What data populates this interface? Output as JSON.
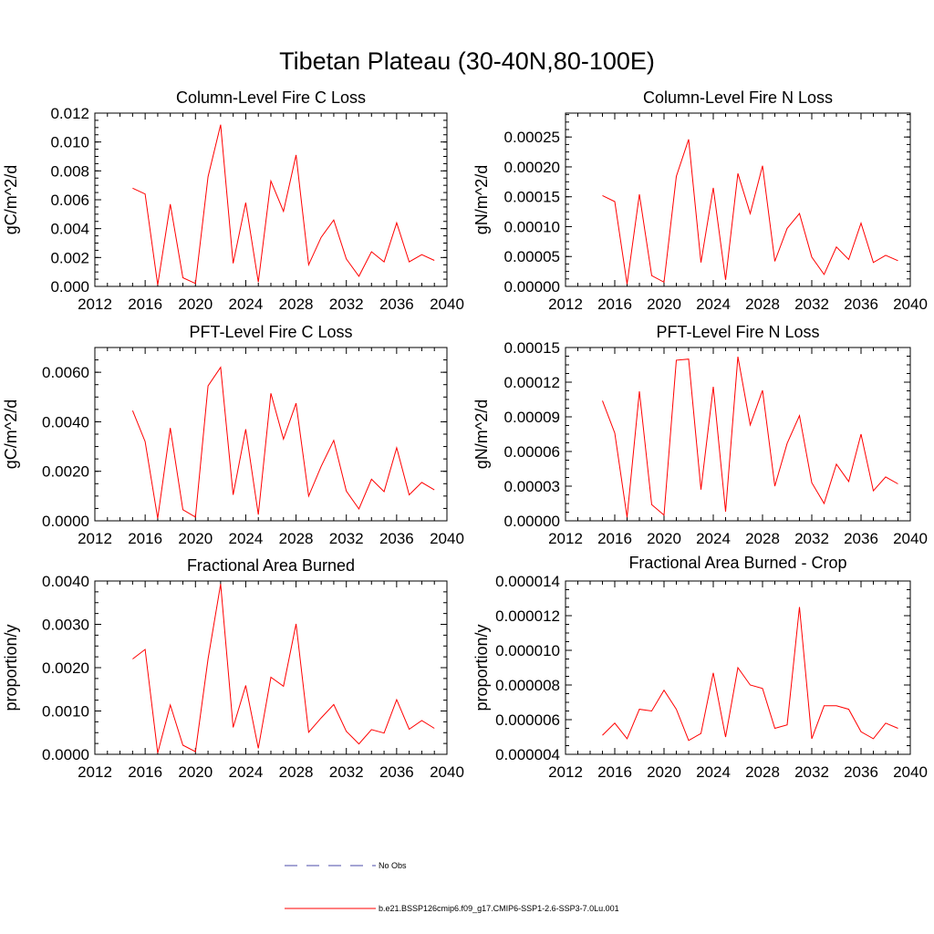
{
  "figure": {
    "title": "Tibetan Plateau (30-40N,80-100E)",
    "legend": [
      {
        "label": "No Obs",
        "color": "#4a4aa8",
        "style": "dashed"
      },
      {
        "label": "b.e21.BSSP126cmip6.f09_g17.CMIP6-SSP1-2.6-SSP3-7.0Lu.001",
        "color": "#ff0000",
        "style": "solid"
      }
    ],
    "line_color": "#ff0000"
  },
  "chart_data": [
    {
      "type": "line",
      "title": "Column-Level Fire C Loss",
      "ylabel": "gC/m^2/d",
      "xlabel": "",
      "xlim": [
        2012,
        2040
      ],
      "xticks": [
        "2012",
        "2016",
        "2020",
        "2024",
        "2028",
        "2032",
        "2036",
        "2040"
      ],
      "ylim": [
        0,
        0.012
      ],
      "yticks": [
        "0.000",
        "0.002",
        "0.004",
        "0.006",
        "0.008",
        "0.010",
        "0.012"
      ],
      "x": [
        2015,
        2016,
        2017,
        2018,
        2019,
        2020,
        2021,
        2022,
        2023,
        2024,
        2025,
        2026,
        2027,
        2028,
        2029,
        2030,
        2031,
        2032,
        2033,
        2034,
        2035,
        2036,
        2037,
        2038,
        2039
      ],
      "series": [
        {
          "values": [
            0.0068,
            0.0064,
            0.0001,
            0.0057,
            0.0006,
            0.0002,
            0.0076,
            0.0112,
            0.0016,
            0.0058,
            0.0003,
            0.0073,
            0.0052,
            0.0091,
            0.0015,
            0.0034,
            0.0046,
            0.0019,
            0.0007,
            0.0024,
            0.0017,
            0.0044,
            0.0017,
            0.0022,
            0.0018
          ]
        }
      ]
    },
    {
      "type": "line",
      "title": "Column-Level Fire N Loss",
      "ylabel": "gN/m^2/d",
      "xlabel": "",
      "xlim": [
        2012,
        2040
      ],
      "xticks": [
        "2012",
        "2016",
        "2020",
        "2024",
        "2028",
        "2032",
        "2036",
        "2040"
      ],
      "ylim": [
        0,
        0.00029
      ],
      "yticks": [
        "0.00000",
        "0.00005",
        "0.00010",
        "0.00015",
        "0.00020",
        "0.00025"
      ],
      "x": [
        2015,
        2016,
        2017,
        2018,
        2019,
        2020,
        2021,
        2022,
        2023,
        2024,
        2025,
        2026,
        2027,
        2028,
        2029,
        2030,
        2031,
        2032,
        2033,
        2034,
        2035,
        2036,
        2037,
        2038,
        2039
      ],
      "series": [
        {
          "values": [
            0.000152,
            0.000142,
            4e-06,
            0.000154,
            1.8e-05,
            7e-06,
            0.000184,
            0.000246,
            4e-05,
            0.000165,
            1.1e-05,
            0.000189,
            0.000122,
            0.000202,
            4.2e-05,
            9.7e-05,
            0.000122,
            4.9e-05,
            2e-05,
            6.6e-05,
            4.5e-05,
            0.000106,
            4e-05,
            5.2e-05,
            4.3e-05
          ]
        }
      ]
    },
    {
      "type": "line",
      "title": "PFT-Level Fire C Loss",
      "ylabel": "gC/m^2/d",
      "xlabel": "",
      "xlim": [
        2012,
        2040
      ],
      "xticks": [
        "2012",
        "2016",
        "2020",
        "2024",
        "2028",
        "2032",
        "2036",
        "2040"
      ],
      "ylim": [
        0,
        0.007
      ],
      "yticks": [
        "0.0000",
        "0.0020",
        "0.0040",
        "0.0060"
      ],
      "x": [
        2015,
        2016,
        2017,
        2018,
        2019,
        2020,
        2021,
        2022,
        2023,
        2024,
        2025,
        2026,
        2027,
        2028,
        2029,
        2030,
        2031,
        2032,
        2033,
        2034,
        2035,
        2036,
        2037,
        2038,
        2039
      ],
      "series": [
        {
          "values": [
            0.00445,
            0.0032,
            0.0001,
            0.00375,
            0.00045,
            0.00015,
            0.00545,
            0.0062,
            0.00105,
            0.0037,
            0.00025,
            0.00515,
            0.0033,
            0.00475,
            0.001,
            0.0022,
            0.00325,
            0.0012,
            0.00048,
            0.00168,
            0.00118,
            0.00295,
            0.00105,
            0.00155,
            0.00125
          ]
        }
      ]
    },
    {
      "type": "line",
      "title": "PFT-Level Fire N Loss",
      "ylabel": "gN/m^2/d",
      "xlabel": "",
      "xlim": [
        2012,
        2040
      ],
      "xticks": [
        "2012",
        "2016",
        "2020",
        "2024",
        "2028",
        "2032",
        "2036",
        "2040"
      ],
      "ylim": [
        0,
        0.00015
      ],
      "yticks": [
        "0.00000",
        "0.00003",
        "0.00006",
        "0.00009",
        "0.00012",
        "0.00015"
      ],
      "x": [
        2015,
        2016,
        2017,
        2018,
        2019,
        2020,
        2021,
        2022,
        2023,
        2024,
        2025,
        2026,
        2027,
        2028,
        2029,
        2030,
        2031,
        2032,
        2033,
        2034,
        2035,
        2036,
        2037,
        2038,
        2039
      ],
      "series": [
        {
          "values": [
            0.000104,
            7.6e-05,
            3e-06,
            0.000112,
            1.4e-05,
            5e-06,
            0.000139,
            0.00014,
            2.7e-05,
            0.000116,
            8e-06,
            0.000142,
            8.3e-05,
            0.000113,
            3e-05,
            6.7e-05,
            9.1e-05,
            3.3e-05,
            1.5e-05,
            4.9e-05,
            3.4e-05,
            7.5e-05,
            2.6e-05,
            3.8e-05,
            3.2e-05
          ]
        }
      ]
    },
    {
      "type": "line",
      "title": "Fractional Area Burned",
      "ylabel": "proportion/y",
      "xlabel": "",
      "xlim": [
        2012,
        2040
      ],
      "xticks": [
        "2012",
        "2016",
        "2020",
        "2024",
        "2028",
        "2032",
        "2036",
        "2040"
      ],
      "ylim": [
        0,
        0.004
      ],
      "yticks": [
        "0.0000",
        "0.0010",
        "0.0020",
        "0.0030",
        "0.0040"
      ],
      "x": [
        2015,
        2016,
        2017,
        2018,
        2019,
        2020,
        2021,
        2022,
        2023,
        2024,
        2025,
        2026,
        2027,
        2028,
        2029,
        2030,
        2031,
        2032,
        2033,
        2034,
        2035,
        2036,
        2037,
        2038,
        2039
      ],
      "series": [
        {
          "values": [
            0.0022,
            0.00242,
            3e-05,
            0.00114,
            0.00021,
            6e-05,
            0.0022,
            0.00393,
            0.00062,
            0.00159,
            0.00014,
            0.00178,
            0.00157,
            0.00301,
            0.00051,
            0.00084,
            0.00115,
            0.00053,
            0.00024,
            0.00057,
            0.00049,
            0.00126,
            0.00058,
            0.00078,
            0.0006
          ]
        }
      ]
    },
    {
      "type": "line",
      "title": "Fractional Area Burned - Crop",
      "ylabel": "proportion/y",
      "xlabel": "",
      "xlim": [
        2012,
        2040
      ],
      "xticks": [
        "2012",
        "2016",
        "2020",
        "2024",
        "2028",
        "2032",
        "2036",
        "2040"
      ],
      "ylim": [
        4e-06,
        1.4e-05
      ],
      "yticks": [
        "0.000004",
        "0.000006",
        "0.000008",
        "0.000010",
        "0.000012",
        "0.000014"
      ],
      "x": [
        2015,
        2016,
        2017,
        2018,
        2019,
        2020,
        2021,
        2022,
        2023,
        2024,
        2025,
        2026,
        2027,
        2028,
        2029,
        2030,
        2031,
        2032,
        2033,
        2034,
        2035,
        2036,
        2037,
        2038,
        2039
      ],
      "series": [
        {
          "values": [
            5.1e-06,
            5.8e-06,
            4.9e-06,
            6.6e-06,
            6.5e-06,
            7.7e-06,
            6.6e-06,
            4.8e-06,
            5.2e-06,
            8.7e-06,
            5e-06,
            9e-06,
            8e-06,
            7.8e-06,
            5.5e-06,
            5.7e-06,
            1.25e-05,
            4.9e-06,
            6.8e-06,
            6.8e-06,
            6.6e-06,
            5.3e-06,
            4.9e-06,
            5.8e-06,
            5.5e-06
          ]
        }
      ]
    }
  ]
}
